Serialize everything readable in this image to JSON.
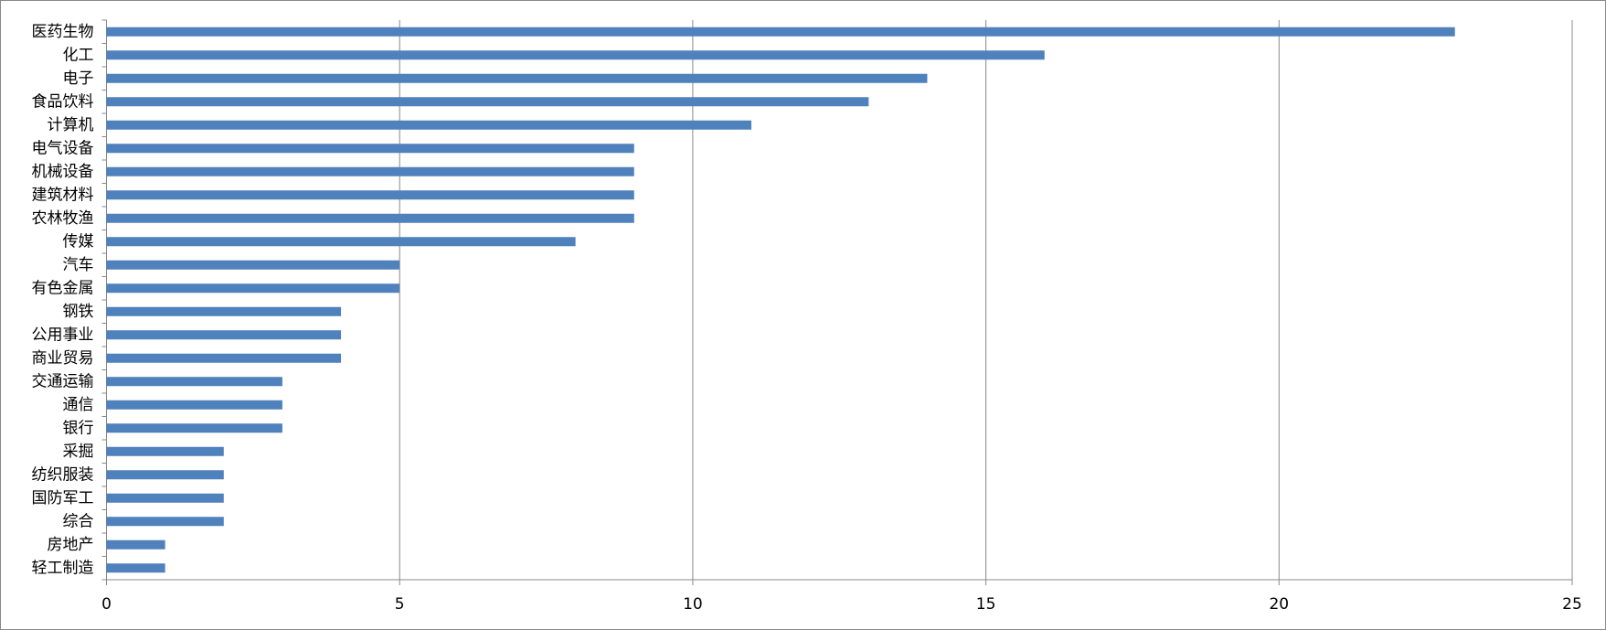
{
  "chart_data": {
    "type": "bar",
    "orientation": "horizontal",
    "categories": [
      "医药生物",
      "化工",
      "电子",
      "食品饮料",
      "计算机",
      "电气设备",
      "机械设备",
      "建筑材料",
      "农林牧渔",
      "传媒",
      "汽车",
      "有色金属",
      "钢铁",
      "公用事业",
      "商业贸易",
      "交通运输",
      "通信",
      "银行",
      "采掘",
      "纺织服装",
      "国防军工",
      "综合",
      "房地产",
      "轻工制造"
    ],
    "values": [
      23,
      16,
      14,
      13,
      11,
      9,
      9,
      9,
      9,
      8,
      5,
      5,
      4,
      4,
      4,
      3,
      3,
      3,
      2,
      2,
      2,
      2,
      1,
      1
    ],
    "color": "#4f81bd",
    "xlim": [
      0,
      25
    ],
    "xticks": [
      0,
      5,
      10,
      15,
      20,
      25
    ],
    "grid": true
  }
}
